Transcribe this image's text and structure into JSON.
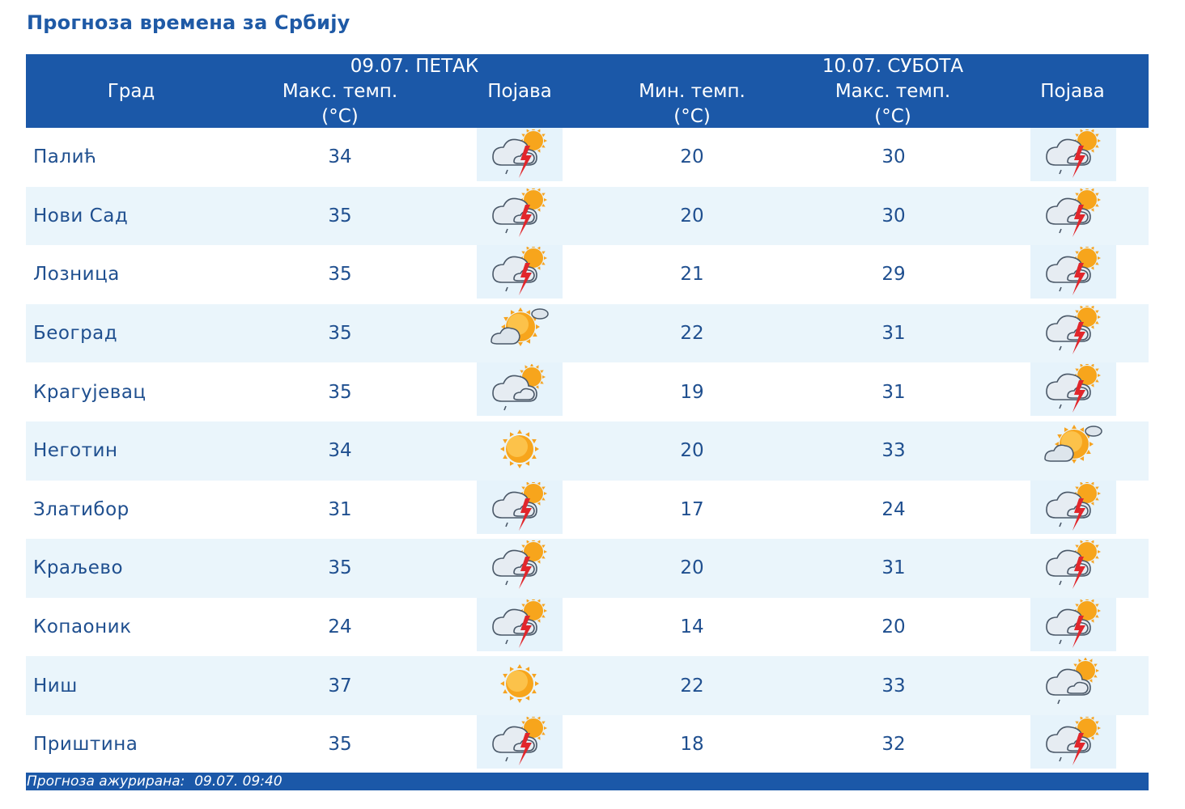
{
  "page": {
    "title": "Прогноза времена за Србију"
  },
  "header": {
    "col_city": "Град",
    "day1": {
      "date": "09.07. ПЕТАК",
      "max_line1": "Макс. темп.",
      "max_line2": "(°C)",
      "phenomenon": "Појава"
    },
    "day2": {
      "date": "10.07. СУБОТА",
      "min_line1": "Мин. темп.",
      "min_line2": "(°C)",
      "max_line1": "Макс. темп.",
      "max_line2": "(°C)",
      "phenomenon": "Појава"
    }
  },
  "rows": [
    {
      "city": "Палић",
      "d1_max": "34",
      "d1_icon": "thunderstorm-icon",
      "d2_min": "20",
      "d2_max": "30",
      "d2_icon": "thunderstorm-icon"
    },
    {
      "city": "Нови Сад",
      "d1_max": "35",
      "d1_icon": "thunderstorm-icon",
      "d2_min": "20",
      "d2_max": "30",
      "d2_icon": "thunderstorm-icon"
    },
    {
      "city": "Лозница",
      "d1_max": "35",
      "d1_icon": "thunderstorm-icon",
      "d2_min": "21",
      "d2_max": "29",
      "d2_icon": "thunderstorm-icon"
    },
    {
      "city": "Београд",
      "d1_max": "35",
      "d1_icon": "partly-cloudy-icon",
      "d2_min": "22",
      "d2_max": "31",
      "d2_icon": "thunderstorm-icon"
    },
    {
      "city": "Крагујевац",
      "d1_max": "35",
      "d1_icon": "cloudy-showers-icon",
      "d2_min": "19",
      "d2_max": "31",
      "d2_icon": "thunderstorm-icon"
    },
    {
      "city": "Неготин",
      "d1_max": "34",
      "d1_icon": "sunny-icon",
      "d2_min": "20",
      "d2_max": "33",
      "d2_icon": "partly-cloudy-icon"
    },
    {
      "city": "Златибор",
      "d1_max": "31",
      "d1_icon": "thunderstorm-icon",
      "d2_min": "17",
      "d2_max": "24",
      "d2_icon": "thunderstorm-icon"
    },
    {
      "city": "Краљево",
      "d1_max": "35",
      "d1_icon": "thunderstorm-icon",
      "d2_min": "20",
      "d2_max": "31",
      "d2_icon": "thunderstorm-icon"
    },
    {
      "city": "Копаоник",
      "d1_max": "24",
      "d1_icon": "thunderstorm-icon",
      "d2_min": "14",
      "d2_max": "20",
      "d2_icon": "thunderstorm-icon"
    },
    {
      "city": "Ниш",
      "d1_max": "37",
      "d1_icon": "sunny-icon",
      "d2_min": "22",
      "d2_max": "33",
      "d2_icon": "cloudy-showers-icon"
    },
    {
      "city": "Приштина",
      "d1_max": "35",
      "d1_icon": "thunderstorm-icon",
      "d2_min": "18",
      "d2_max": "32",
      "d2_icon": "thunderstorm-icon"
    }
  ],
  "footer": {
    "updated_label": "Прогноза ажурирана:",
    "updated_value": "09.07. 09:40"
  },
  "colors": {
    "header_bg": "#1b58a8",
    "title": "#1f5aa6",
    "text": "#1f4f8f",
    "alt_row": "#eaf5fb"
  }
}
